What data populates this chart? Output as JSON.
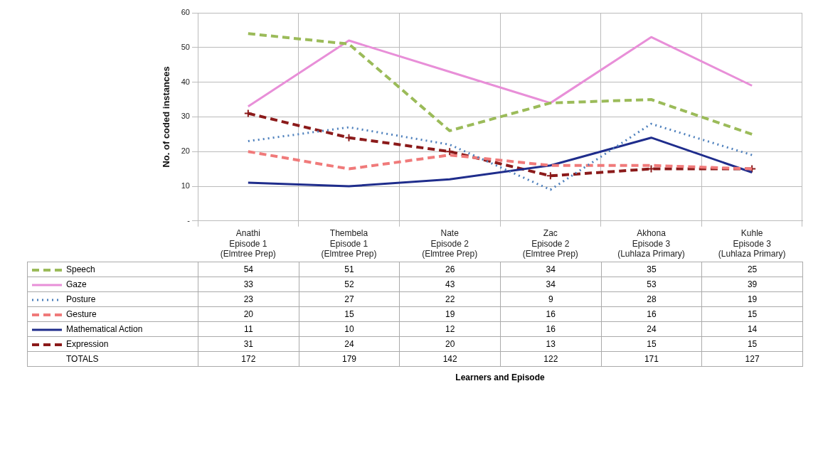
{
  "chart_data": {
    "type": "line",
    "ylabel": "No. of coded instances",
    "categories": [
      "Anathi\nEpisode 1\n(Elmtree Prep)",
      "Thembela\nEpisode 1\n(Elmtree Prep)",
      "Nate\nEpisode 2\n(Elmtree Prep)",
      "Zac\nEpisode 2\n(Elmtree Prep)",
      "Akhona\nEpisode 3\n(Luhlaza Primary)",
      "Kuhle\nEpisode 3\n(Luhlaza Primary)"
    ],
    "series": [
      {
        "name": "Speech",
        "color": "#9bbb59",
        "line_style": "dashed",
        "values": [
          54,
          51,
          26,
          34,
          35,
          25
        ]
      },
      {
        "name": "Gaze",
        "color": "#e88fd8",
        "line_style": "solid",
        "values": [
          33,
          52,
          43,
          34,
          53,
          39
        ]
      },
      {
        "name": "Posture",
        "color": "#4f81bd",
        "line_style": "dotted",
        "values": [
          23,
          27,
          22,
          9,
          28,
          19
        ]
      },
      {
        "name": "Gesture",
        "color": "#f07a7a",
        "line_style": "dashed",
        "values": [
          20,
          15,
          19,
          16,
          16,
          15
        ]
      },
      {
        "name": "Mathematical Action",
        "color": "#1f2d8c",
        "line_style": "solid",
        "values": [
          11,
          10,
          12,
          16,
          24,
          14
        ]
      },
      {
        "name": "Expression",
        "color": "#8b1a1a",
        "line_style": "dashed",
        "marker": "cross",
        "values": [
          31,
          24,
          20,
          13,
          15,
          15
        ]
      }
    ],
    "totals": [
      "172",
      "179",
      "142",
      "122",
      "171",
      "127"
    ],
    "annotations": [
      "TOTALS",
      "Learners and Episode"
    ],
    "ylim": [
      0,
      60
    ],
    "yticks": [
      {
        "value": 0,
        "label": "-"
      },
      10,
      20,
      30,
      40,
      50,
      60
    ],
    "grid": true,
    "legend": "bottom",
    "data_labels": true
  }
}
